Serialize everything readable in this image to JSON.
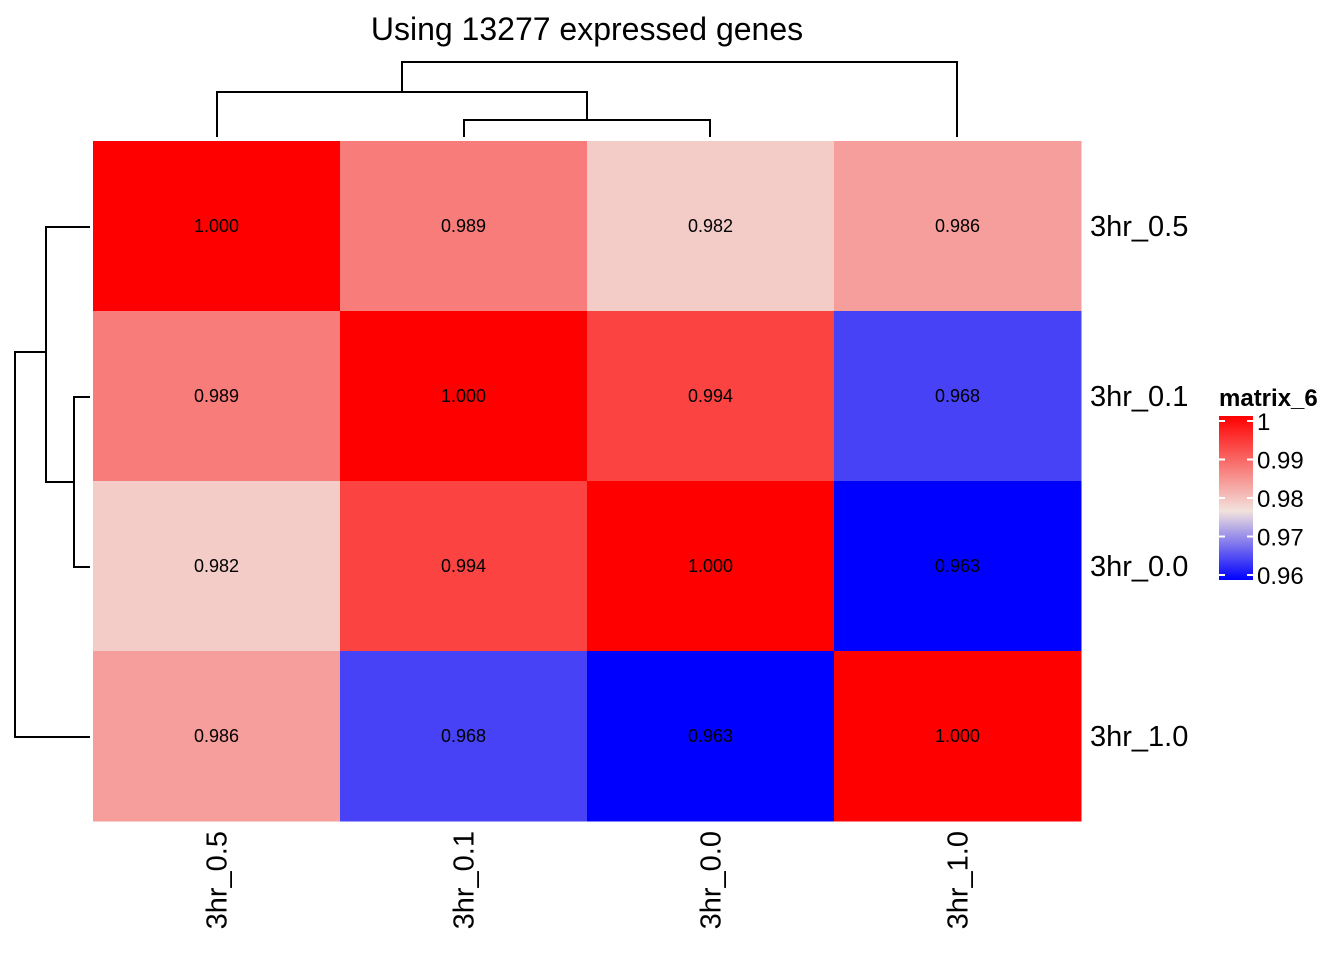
{
  "chart_data": {
    "type": "heatmap",
    "title": "Using 13277 expressed genes",
    "row_labels": [
      "3hr_0.5",
      "3hr_0.1",
      "3hr_0.0",
      "3hr_1.0"
    ],
    "col_labels": [
      "3hr_0.5",
      "3hr_0.1",
      "3hr_0.0",
      "3hr_1.0"
    ],
    "values": [
      [
        1.0,
        0.989,
        0.982,
        0.986
      ],
      [
        0.989,
        1.0,
        0.994,
        0.968
      ],
      [
        0.982,
        0.994,
        1.0,
        0.963
      ],
      [
        0.986,
        0.968,
        0.963,
        1.0
      ]
    ],
    "cell_labels": [
      [
        "1.000",
        "0.989",
        "0.982",
        "0.986"
      ],
      [
        "0.989",
        "1.000",
        "0.994",
        "0.968"
      ],
      [
        "0.982",
        "0.994",
        "1.000",
        "0.963"
      ],
      [
        "0.986",
        "0.968",
        "0.963",
        "1.000"
      ]
    ],
    "legend": {
      "title": "matrix_6",
      "placement": "right",
      "ticks": [
        1,
        0.99,
        0.98,
        0.97,
        0.96
      ],
      "tick_labels": [
        "1",
        "0.99",
        "0.98",
        "0.97",
        "0.96"
      ],
      "range": [
        0.96,
        1.0
      ]
    },
    "color_scale": {
      "low": "#0000ff",
      "mid": "#f2e2dd",
      "high": "#ff0000",
      "domain": [
        0.963,
        0.98,
        1.0
      ]
    },
    "column_dendrogram": "clustered (3hr_0.5, ((3hr_0.1, 3hr_0.0)), 3hr_1.0)",
    "row_dendrogram": "clustered ((3hr_0.5, (3hr_0.1, 3hr_0.0)), 3hr_1.0)"
  }
}
